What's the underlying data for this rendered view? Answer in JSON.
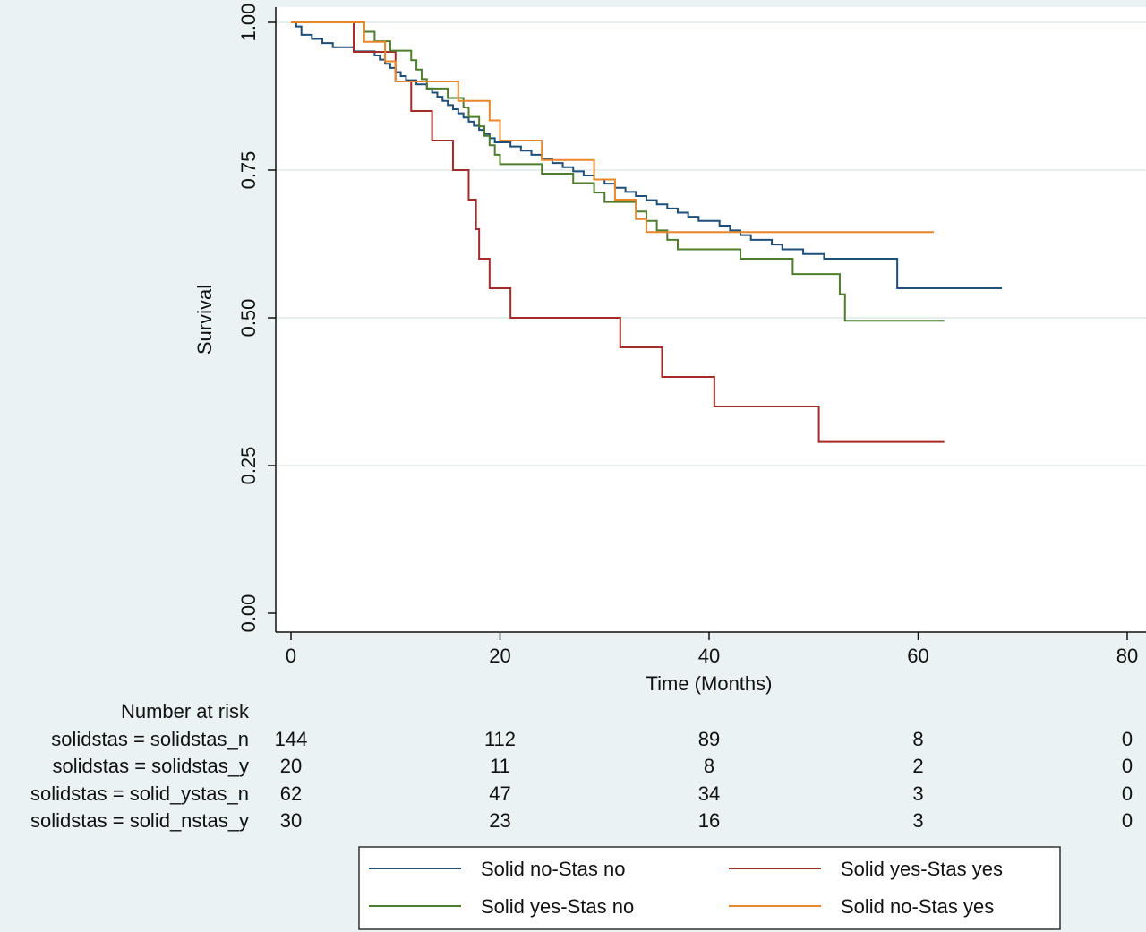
{
  "chart_data": {
    "type": "line",
    "subtype": "kaplan-meier",
    "xlabel": "Time (Months)",
    "ylabel": "Survival",
    "xlim": [
      0,
      80
    ],
    "ylim": [
      0,
      1
    ],
    "x_ticks": [
      "0",
      "20",
      "40",
      "60",
      "80"
    ],
    "y_ticks": [
      "0.00",
      "0.25",
      "0.50",
      "0.75",
      "1.00"
    ],
    "grid": "horizontal",
    "series": [
      {
        "name": "Solid no-Stas no",
        "color": "#1f4e79",
        "steps": [
          [
            0,
            1.0
          ],
          [
            0.5,
            0.993
          ],
          [
            1,
            0.979
          ],
          [
            2,
            0.972
          ],
          [
            3,
            0.965
          ],
          [
            4,
            0.958
          ],
          [
            6,
            0.951
          ],
          [
            8,
            0.944
          ],
          [
            8.5,
            0.937
          ],
          [
            9,
            0.93
          ],
          [
            9.5,
            0.923
          ],
          [
            10,
            0.916
          ],
          [
            10.5,
            0.909
          ],
          [
            11,
            0.902
          ],
          [
            12,
            0.895
          ],
          [
            13,
            0.888
          ],
          [
            13.5,
            0.881
          ],
          [
            14,
            0.874
          ],
          [
            14.5,
            0.867
          ],
          [
            15,
            0.86
          ],
          [
            15.5,
            0.853
          ],
          [
            16,
            0.846
          ],
          [
            16.5,
            0.839
          ],
          [
            17,
            0.832
          ],
          [
            17.5,
            0.825
          ],
          [
            18,
            0.818
          ],
          [
            18.5,
            0.811
          ],
          [
            19,
            0.804
          ],
          [
            19.5,
            0.797
          ],
          [
            21,
            0.79
          ],
          [
            22,
            0.783
          ],
          [
            23,
            0.776
          ],
          [
            24,
            0.769
          ],
          [
            25,
            0.762
          ],
          [
            26,
            0.755
          ],
          [
            27,
            0.748
          ],
          [
            28,
            0.741
          ],
          [
            29,
            0.734
          ],
          [
            30,
            0.727
          ],
          [
            31,
            0.72
          ],
          [
            32,
            0.713
          ],
          [
            33,
            0.706
          ],
          [
            34,
            0.699
          ],
          [
            35,
            0.692
          ],
          [
            36,
            0.685
          ],
          [
            37,
            0.678
          ],
          [
            38,
            0.671
          ],
          [
            39,
            0.664
          ],
          [
            41,
            0.656
          ],
          [
            42,
            0.648
          ],
          [
            43,
            0.64
          ],
          [
            44,
            0.632
          ],
          [
            46,
            0.624
          ],
          [
            47,
            0.616
          ],
          [
            49,
            0.608
          ],
          [
            51,
            0.6
          ],
          [
            56,
            0.6
          ],
          [
            58,
            0.55
          ],
          [
            68,
            0.55
          ]
        ]
      },
      {
        "name": "Solid yes-Stas yes",
        "color": "#a52a2a",
        "steps": [
          [
            0,
            1.0
          ],
          [
            6,
            0.95
          ],
          [
            10,
            0.9
          ],
          [
            11.5,
            0.85
          ],
          [
            13.5,
            0.8
          ],
          [
            15.5,
            0.75
          ],
          [
            17,
            0.7
          ],
          [
            17.7,
            0.65
          ],
          [
            18,
            0.6
          ],
          [
            19,
            0.55
          ],
          [
            21,
            0.5
          ],
          [
            31.5,
            0.45
          ],
          [
            35.5,
            0.4
          ],
          [
            40.5,
            0.35
          ],
          [
            50.5,
            0.29
          ],
          [
            62.5,
            0.29
          ]
        ]
      },
      {
        "name": "Solid yes-Stas no",
        "color": "#4e7d2e",
        "steps": [
          [
            0,
            1.0
          ],
          [
            7,
            0.984
          ],
          [
            8,
            0.968
          ],
          [
            9.5,
            0.952
          ],
          [
            11.5,
            0.936
          ],
          [
            12,
            0.92
          ],
          [
            12.5,
            0.904
          ],
          [
            13,
            0.888
          ],
          [
            15,
            0.872
          ],
          [
            16.5,
            0.856
          ],
          [
            17,
            0.84
          ],
          [
            18,
            0.824
          ],
          [
            18.5,
            0.808
          ],
          [
            19,
            0.792
          ],
          [
            19.5,
            0.776
          ],
          [
            20,
            0.76
          ],
          [
            24,
            0.744
          ],
          [
            27,
            0.728
          ],
          [
            29,
            0.712
          ],
          [
            30,
            0.696
          ],
          [
            33,
            0.68
          ],
          [
            34,
            0.664
          ],
          [
            35,
            0.648
          ],
          [
            36,
            0.632
          ],
          [
            37,
            0.616
          ],
          [
            43,
            0.6
          ],
          [
            48,
            0.574
          ],
          [
            52.5,
            0.54
          ],
          [
            53,
            0.495
          ],
          [
            62.5,
            0.495
          ]
        ]
      },
      {
        "name": "Solid no-Stas yes",
        "color": "#e8862a",
        "steps": [
          [
            0,
            1.0
          ],
          [
            7,
            0.967
          ],
          [
            9,
            0.934
          ],
          [
            10,
            0.9
          ],
          [
            16,
            0.867
          ],
          [
            19,
            0.834
          ],
          [
            20,
            0.8
          ],
          [
            24,
            0.767
          ],
          [
            29,
            0.734
          ],
          [
            31,
            0.7
          ],
          [
            33,
            0.667
          ],
          [
            34,
            0.645
          ],
          [
            61.5,
            0.645
          ]
        ]
      }
    ],
    "risk_table": {
      "header": "Number at risk",
      "times": [
        0,
        20,
        40,
        60,
        80
      ],
      "rows": [
        {
          "label": "solidstas = solidstas_n",
          "values": [
            "144",
            "112",
            "89",
            "8",
            "0"
          ]
        },
        {
          "label": "solidstas = solidstas_y",
          "values": [
            "20",
            "11",
            "8",
            "2",
            "0"
          ]
        },
        {
          "label": "solidstas = solid_ystas_n",
          "values": [
            "62",
            "47",
            "34",
            "3",
            "0"
          ]
        },
        {
          "label": "solidstas = solid_nstas_y",
          "values": [
            "30",
            "23",
            "16",
            "3",
            "0"
          ]
        }
      ]
    },
    "legend": {
      "placement": "bottom",
      "columns": 2,
      "entries": [
        {
          "label": "Solid no-Stas no",
          "color": "#1f4e79"
        },
        {
          "label": "Solid yes-Stas yes",
          "color": "#a52a2a"
        },
        {
          "label": "Solid yes-Stas no",
          "color": "#4e7d2e"
        },
        {
          "label": "Solid no-Stas yes",
          "color": "#e8862a"
        }
      ]
    }
  }
}
